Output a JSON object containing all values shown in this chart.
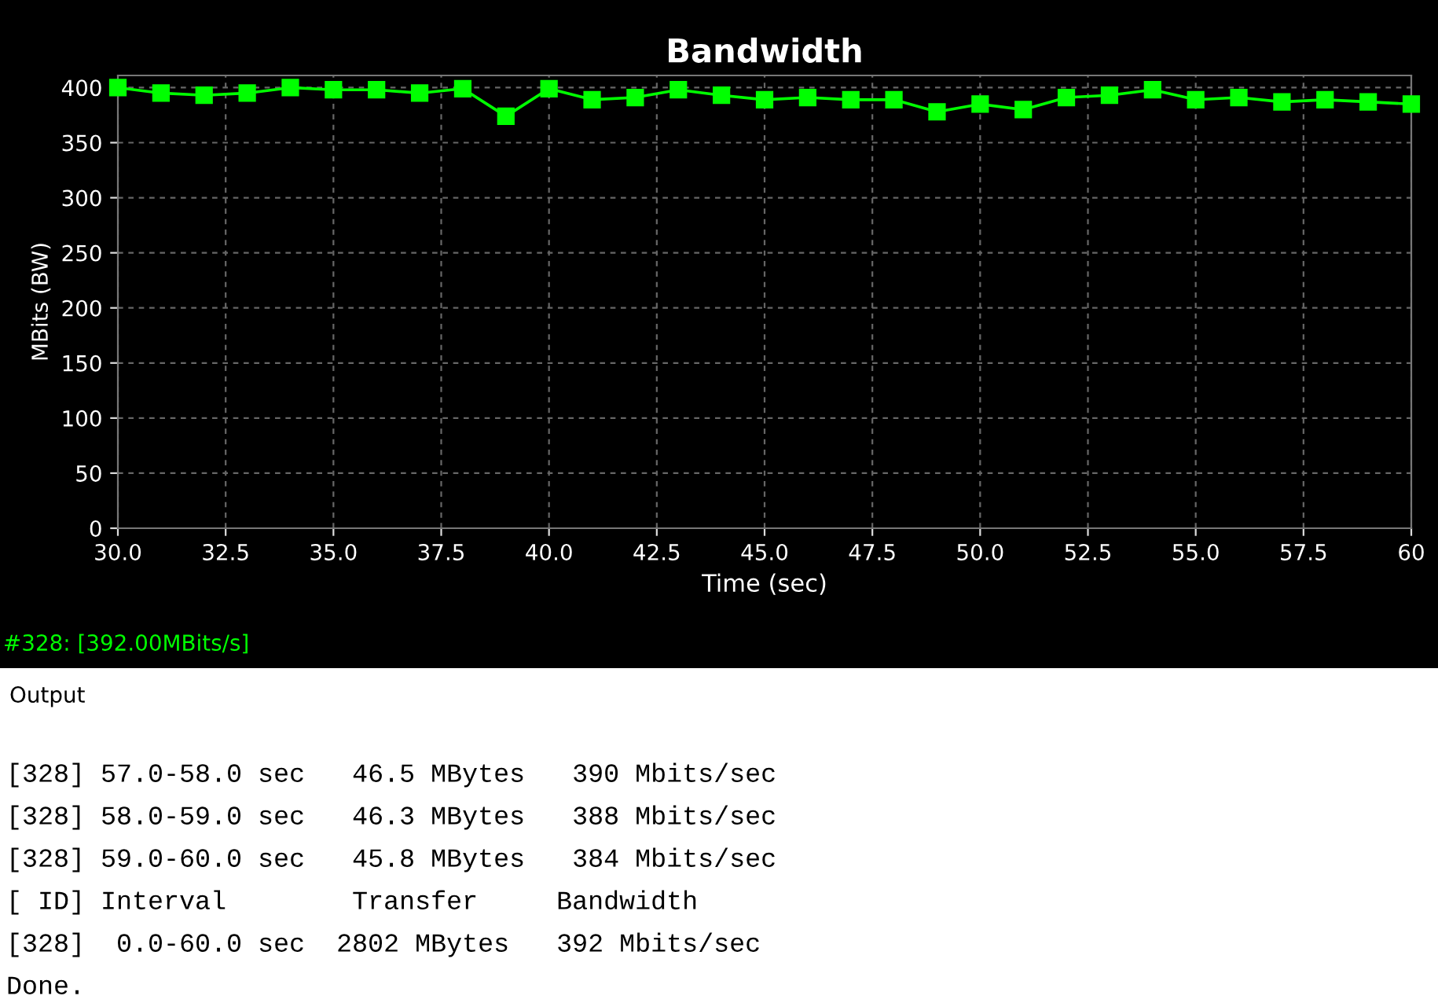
{
  "chart_data": {
    "type": "line",
    "title": "Bandwidth",
    "xlabel": "Time (sec)",
    "ylabel": "MBits (BW)",
    "x": [
      30,
      31,
      32,
      33,
      34,
      35,
      36,
      37,
      38,
      39,
      40,
      41,
      42,
      43,
      44,
      45,
      46,
      47,
      48,
      49,
      50,
      51,
      52,
      53,
      54,
      55,
      56,
      57,
      58,
      59,
      60
    ],
    "series": [
      {
        "color": "#00ff00",
        "values": [
          400,
          395,
          393,
          395,
          400,
          398,
          398,
          395,
          399,
          374,
          399,
          389,
          391,
          398,
          393,
          389,
          391,
          389,
          389,
          378,
          385,
          380,
          391,
          393,
          398,
          389,
          391,
          387,
          389,
          387,
          385
        ]
      }
    ],
    "xlim": [
      30,
      60
    ],
    "ylim": [
      0,
      411
    ],
    "xticks": [
      {
        "value": 30,
        "label": "30.0"
      },
      {
        "value": 32.5,
        "label": "32.5"
      },
      {
        "value": 35,
        "label": "35.0"
      },
      {
        "value": 37.5,
        "label": "37.5"
      },
      {
        "value": 40,
        "label": "40.0"
      },
      {
        "value": 42.5,
        "label": "42.5"
      },
      {
        "value": 45,
        "label": "45.0"
      },
      {
        "value": 47.5,
        "label": "47.5"
      },
      {
        "value": 50,
        "label": "50.0"
      },
      {
        "value": 52.5,
        "label": "52.5"
      },
      {
        "value": 55,
        "label": "55.0"
      },
      {
        "value": 57.5,
        "label": "57.5"
      },
      {
        "value": 60,
        "label": "60"
      }
    ],
    "yticks": [
      0,
      50,
      100,
      150,
      200,
      250,
      300,
      350,
      400
    ],
    "grid": true,
    "marker": "square",
    "line_style": "solid",
    "annotations": [
      "#328: [392.00MBits/s]",
      "Output",
      "[328] 57.0-58.0 sec   46.5 MBytes   390 Mbits/sec",
      "[328] 58.0-59.0 sec   46.3 MBytes   388 Mbits/sec",
      "[328] 59.0-60.0 sec   45.8 MBytes   384 Mbits/sec",
      "[ ID] Interval        Transfer     Bandwidth",
      "[328]  0.0-60.0 sec  2802 MBytes   392 Mbits/sec",
      "Done."
    ]
  }
}
